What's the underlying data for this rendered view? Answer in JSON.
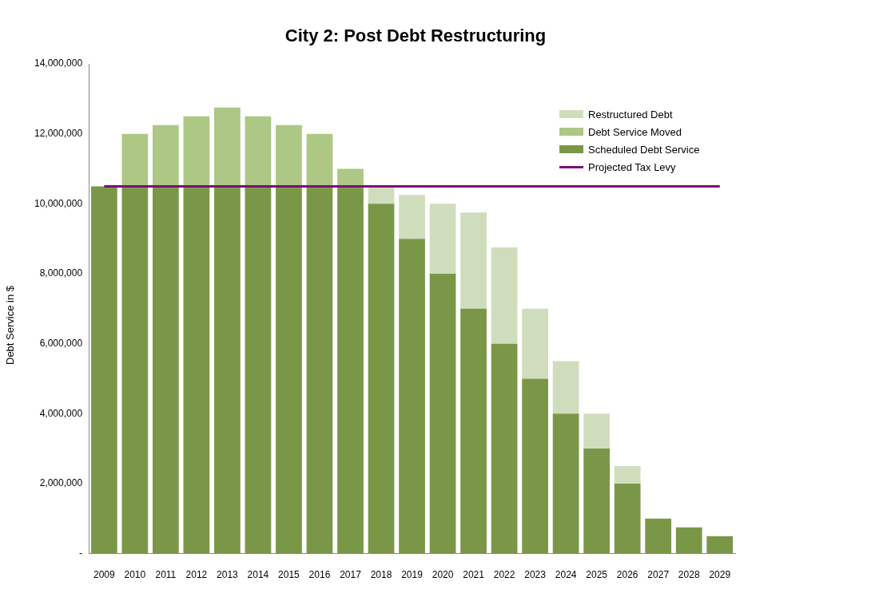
{
  "chart_data": {
    "type": "bar",
    "title": "City 2: Post Debt Restructuring",
    "ylabel": "Debt Service in $",
    "categories": [
      "2009",
      "2010",
      "2011",
      "2012",
      "2013",
      "2014",
      "2015",
      "2016",
      "2017",
      "2018",
      "2019",
      "2020",
      "2021",
      "2022",
      "2023",
      "2024",
      "2025",
      "2026",
      "2027",
      "2028",
      "2029"
    ],
    "series": [
      {
        "name": "Scheduled Debt Service",
        "color": "#7a9748",
        "values": [
          10500000,
          10500000,
          10500000,
          10500000,
          10500000,
          10500000,
          10500000,
          10500000,
          10500000,
          10000000,
          9000000,
          8000000,
          7000000,
          6000000,
          5000000,
          4000000,
          3000000,
          2000000,
          1000000,
          750000,
          500000
        ]
      },
      {
        "name": "Debt Service Moved",
        "color": "#adc785",
        "values": [
          0,
          1500000,
          1750000,
          2000000,
          2250000,
          2000000,
          1750000,
          1500000,
          500000,
          0,
          0,
          0,
          0,
          0,
          0,
          0,
          0,
          0,
          0,
          0,
          0
        ]
      },
      {
        "name": "Restructured Debt",
        "color": "#d0ddbd",
        "values": [
          0,
          0,
          0,
          0,
          0,
          0,
          0,
          0,
          0,
          500000,
          1250000,
          2000000,
          2750000,
          2750000,
          2000000,
          1500000,
          1000000,
          500000,
          0,
          0,
          0
        ]
      },
      {
        "name": "Projected Tax Levy",
        "type": "line",
        "color": "#7b1078",
        "values": [
          10500000,
          10500000,
          10500000,
          10500000,
          10500000,
          10500000,
          10500000,
          10500000,
          10500000,
          10500000,
          10500000,
          10500000,
          10500000,
          10500000,
          10500000,
          10500000,
          10500000,
          10500000,
          10500000,
          10500000,
          10500000
        ]
      }
    ],
    "stacked": true,
    "ylim": [
      0,
      14000000
    ],
    "yticks": [
      {
        "value": 0,
        "label": "-"
      },
      {
        "value": 2000000,
        "label": "2,000,000"
      },
      {
        "value": 4000000,
        "label": "4,000,000"
      },
      {
        "value": 6000000,
        "label": "6,000,000"
      },
      {
        "value": 8000000,
        "label": "8,000,000"
      },
      {
        "value": 10000000,
        "label": "10,000,000"
      },
      {
        "value": 12000000,
        "label": "12,000,000"
      },
      {
        "value": 14000000,
        "label": "14,000,000"
      }
    ],
    "grid": false,
    "legend": "right",
    "marker": "none",
    "line_style": "solid"
  }
}
